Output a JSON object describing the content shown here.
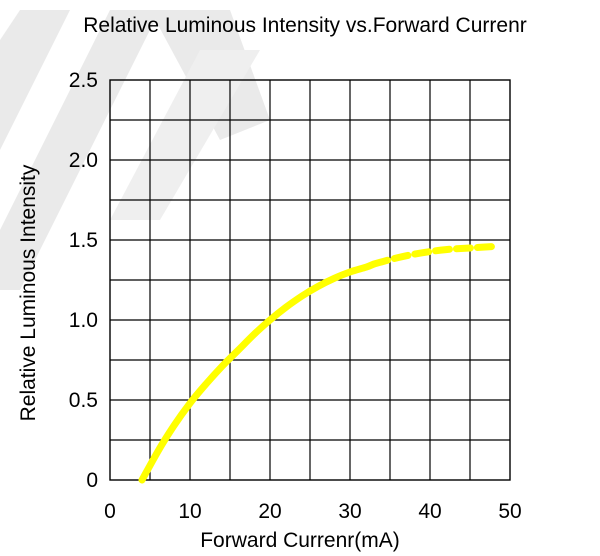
{
  "chart_data": {
    "type": "line",
    "title": "Relative Luminous Intensity vs.Forward Currenr",
    "xlabel": "Forward Currenr(mA)",
    "ylabel": "Relative Luminous Intensity",
    "xlim": [
      0,
      50
    ],
    "ylim": [
      0,
      2.5
    ],
    "x_ticks": [
      "0",
      "10",
      "20",
      "30",
      "40",
      "50"
    ],
    "y_ticks": [
      "0",
      "0.5",
      "1.0",
      "1.5",
      "2.0",
      "2.5"
    ],
    "grid": true,
    "legend": "none",
    "series": [
      {
        "style": "solid",
        "color": "#ffff00",
        "x": [
          4,
          6,
          8,
          10,
          12,
          14,
          16,
          18,
          20,
          22,
          24,
          26,
          28,
          30,
          32,
          33
        ],
        "y": [
          0,
          0.18,
          0.34,
          0.48,
          0.6,
          0.71,
          0.81,
          0.91,
          1.0,
          1.08,
          1.15,
          1.21,
          1.26,
          1.3,
          1.33,
          1.35
        ]
      },
      {
        "style": "dashed",
        "color": "#ffff00",
        "x": [
          33,
          36,
          39,
          42,
          45,
          48
        ],
        "y": [
          1.35,
          1.39,
          1.42,
          1.44,
          1.45,
          1.46
        ]
      }
    ]
  }
}
